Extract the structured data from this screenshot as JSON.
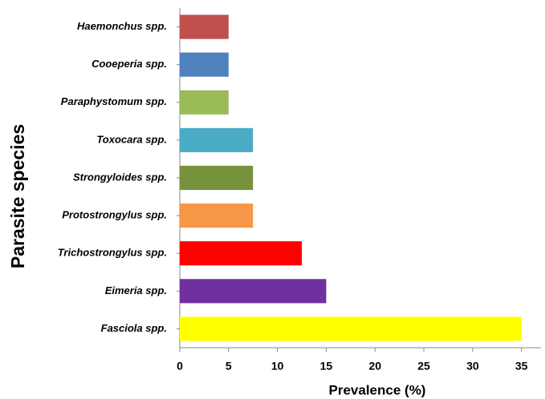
{
  "chart_data": {
    "type": "barh",
    "xlabel": "Prevalence (%)",
    "ylabel": "Parasite species",
    "categories": [
      "Haemonchus spp.",
      "Cooeperia spp.",
      "Paraphystomum spp.",
      "Toxocara spp.",
      "Strongyloides spp.",
      "Protostrongylus spp.",
      "Trichostrongylus spp.",
      "Eimeria spp.",
      "Fasciola spp."
    ],
    "values": [
      5,
      5,
      5,
      7.5,
      7.5,
      7.5,
      12.5,
      15,
      35
    ],
    "colors": [
      "#c0504d",
      "#4f81bd",
      "#9bbb59",
      "#4bacc6",
      "#76923c",
      "#f79646",
      "#ff0000",
      "#7030a0",
      "#ffff00"
    ],
    "xlim": [
      0,
      37
    ],
    "xticks": [
      0,
      5,
      10,
      15,
      20,
      25,
      30,
      35
    ],
    "grid": false
  }
}
